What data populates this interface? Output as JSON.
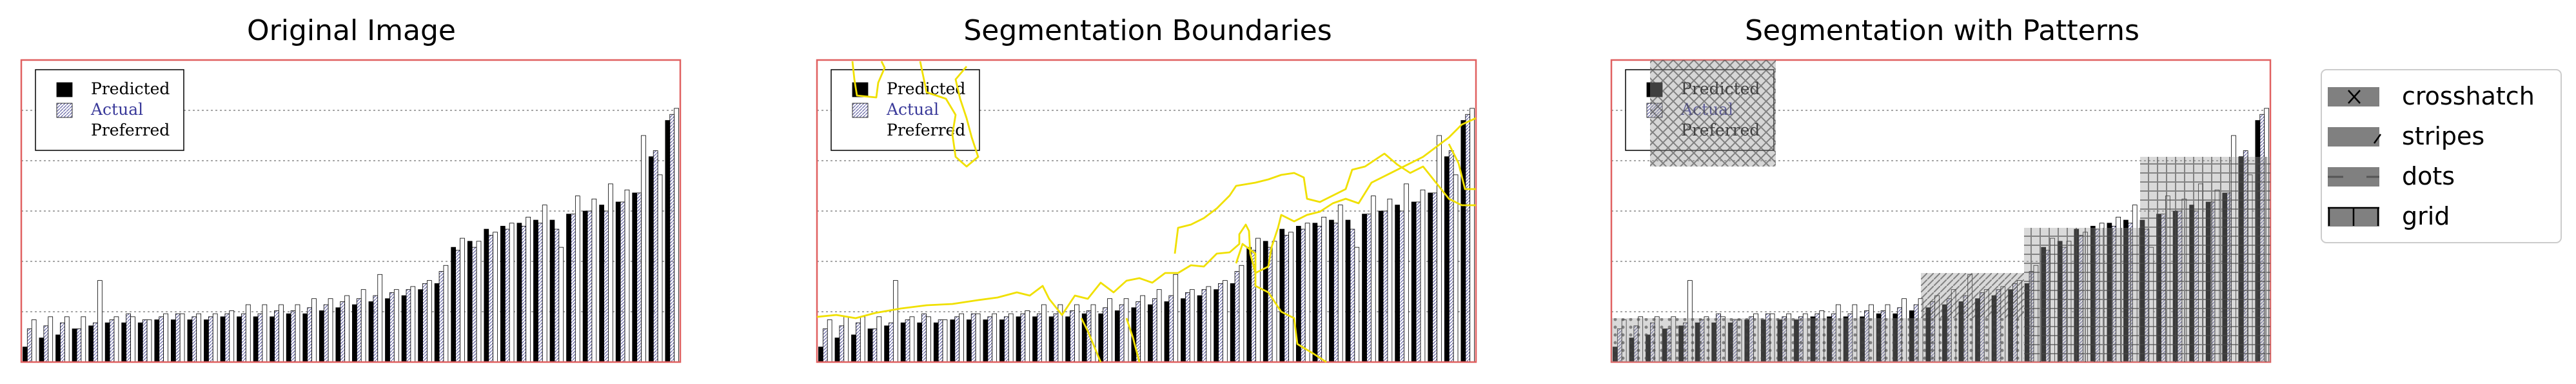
{
  "figure": {
    "panel_titles": [
      "Original Image",
      "Segmentation Boundaries",
      "Segmentation with Patterns"
    ],
    "inner_legend": [
      "Predicted",
      "Actual",
      "Preferred"
    ],
    "pattern_legend": [
      {
        "label": "crosshatch",
        "pattern": "x"
      },
      {
        "label": "stripes",
        "pattern": "/"
      },
      {
        "label": "dots",
        "pattern": "."
      },
      {
        "label": "grid",
        "pattern": "+"
      }
    ],
    "colors": {
      "frame": "#e06060",
      "predicted": "#000000",
      "actual_hatch": "#6a6aa8",
      "preferred": "#ffffff",
      "gridline": "#888888",
      "boundary": "#f0e000",
      "pattern_fill": "#808080"
    }
  },
  "chart_data": [
    {
      "type": "bar",
      "title": "Original Image",
      "series": [
        {
          "name": "Predicted",
          "values": [
            5,
            8,
            9,
            11,
            12,
            13,
            13,
            13,
            14,
            14,
            14,
            14,
            15,
            15,
            15,
            15,
            16,
            16,
            17,
            18,
            19,
            20,
            21,
            22,
            24,
            26,
            38,
            40,
            44,
            45,
            46,
            47,
            47,
            49,
            50,
            52,
            53,
            56,
            68,
            80
          ]
        },
        {
          "name": "Actual",
          "values": [
            11,
            12,
            13,
            11,
            13,
            14,
            16,
            14,
            15,
            16,
            15,
            15,
            16,
            16,
            16,
            17,
            17,
            18,
            19,
            20,
            21,
            22,
            23,
            24,
            26,
            30,
            37,
            38,
            42,
            44,
            45,
            46,
            44,
            49,
            50,
            50,
            53,
            56,
            70,
            82
          ]
        },
        {
          "name": "Preferred",
          "values": [
            14,
            15,
            15,
            15,
            27,
            15,
            15,
            14,
            16,
            16,
            16,
            16,
            17,
            19,
            19,
            19,
            19,
            21,
            21,
            22,
            24,
            29,
            24,
            25,
            27,
            32,
            41,
            40,
            43,
            46,
            48,
            52,
            38,
            55,
            54,
            59,
            57,
            75,
            62,
            84
          ]
        }
      ],
      "ylim": [
        0,
        100
      ]
    }
  ]
}
